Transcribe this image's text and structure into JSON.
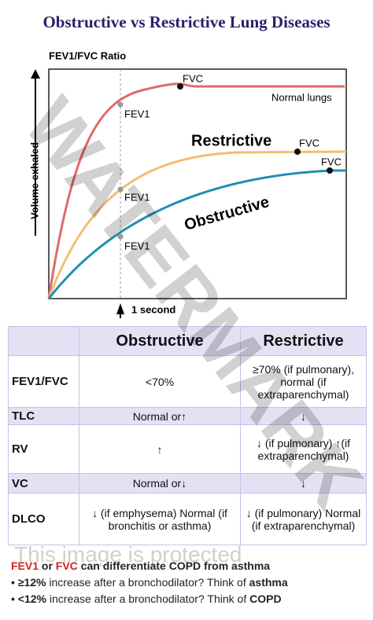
{
  "title": "Obstructive vs Restrictive Lung Diseases",
  "chart": {
    "ratio_label": "FEV1/FVC Ratio",
    "y_label": "Volume exhaled",
    "time_label": "1 second",
    "fvc_label": "FVC",
    "fev1_label": "FEV1",
    "normal_label": "Normal lungs",
    "restrictive_label": "Restrictive",
    "obstructive_label": "Obstructive"
  },
  "table": {
    "headers": [
      "Obstructive",
      "Restrictive"
    ],
    "rows": [
      [
        "FEV1/FVC",
        "<70%",
        "≥70% (if pulmonary), normal (if extraparenchymal)"
      ],
      [
        "TLC",
        "Normal or↑",
        "↓"
      ],
      [
        "RV",
        "↑",
        "↓ (if pulmonary) ↑(if extraparenchymal)"
      ],
      [
        "VC",
        "Normal or↓",
        "↓"
      ],
      [
        "DLCO",
        "↓ (if emphysema) Normal (if bronchitis or asthma)",
        "↓ (if pulmonary) Normal (if extraparenchymal)"
      ]
    ]
  },
  "notes": {
    "intro": [
      "FEV1",
      " or ",
      "FVC",
      " can differentiate COPD from asthma"
    ],
    "bullets": [
      [
        "≥12%",
        " increase after a bronchodilator? Think of ",
        "asthma"
      ],
      [
        "<12%",
        " increase after a bronchodilator? Think of ",
        "COPD"
      ]
    ]
  },
  "watermark": [
    "WATERMARK",
    "This image is protected"
  ]
}
